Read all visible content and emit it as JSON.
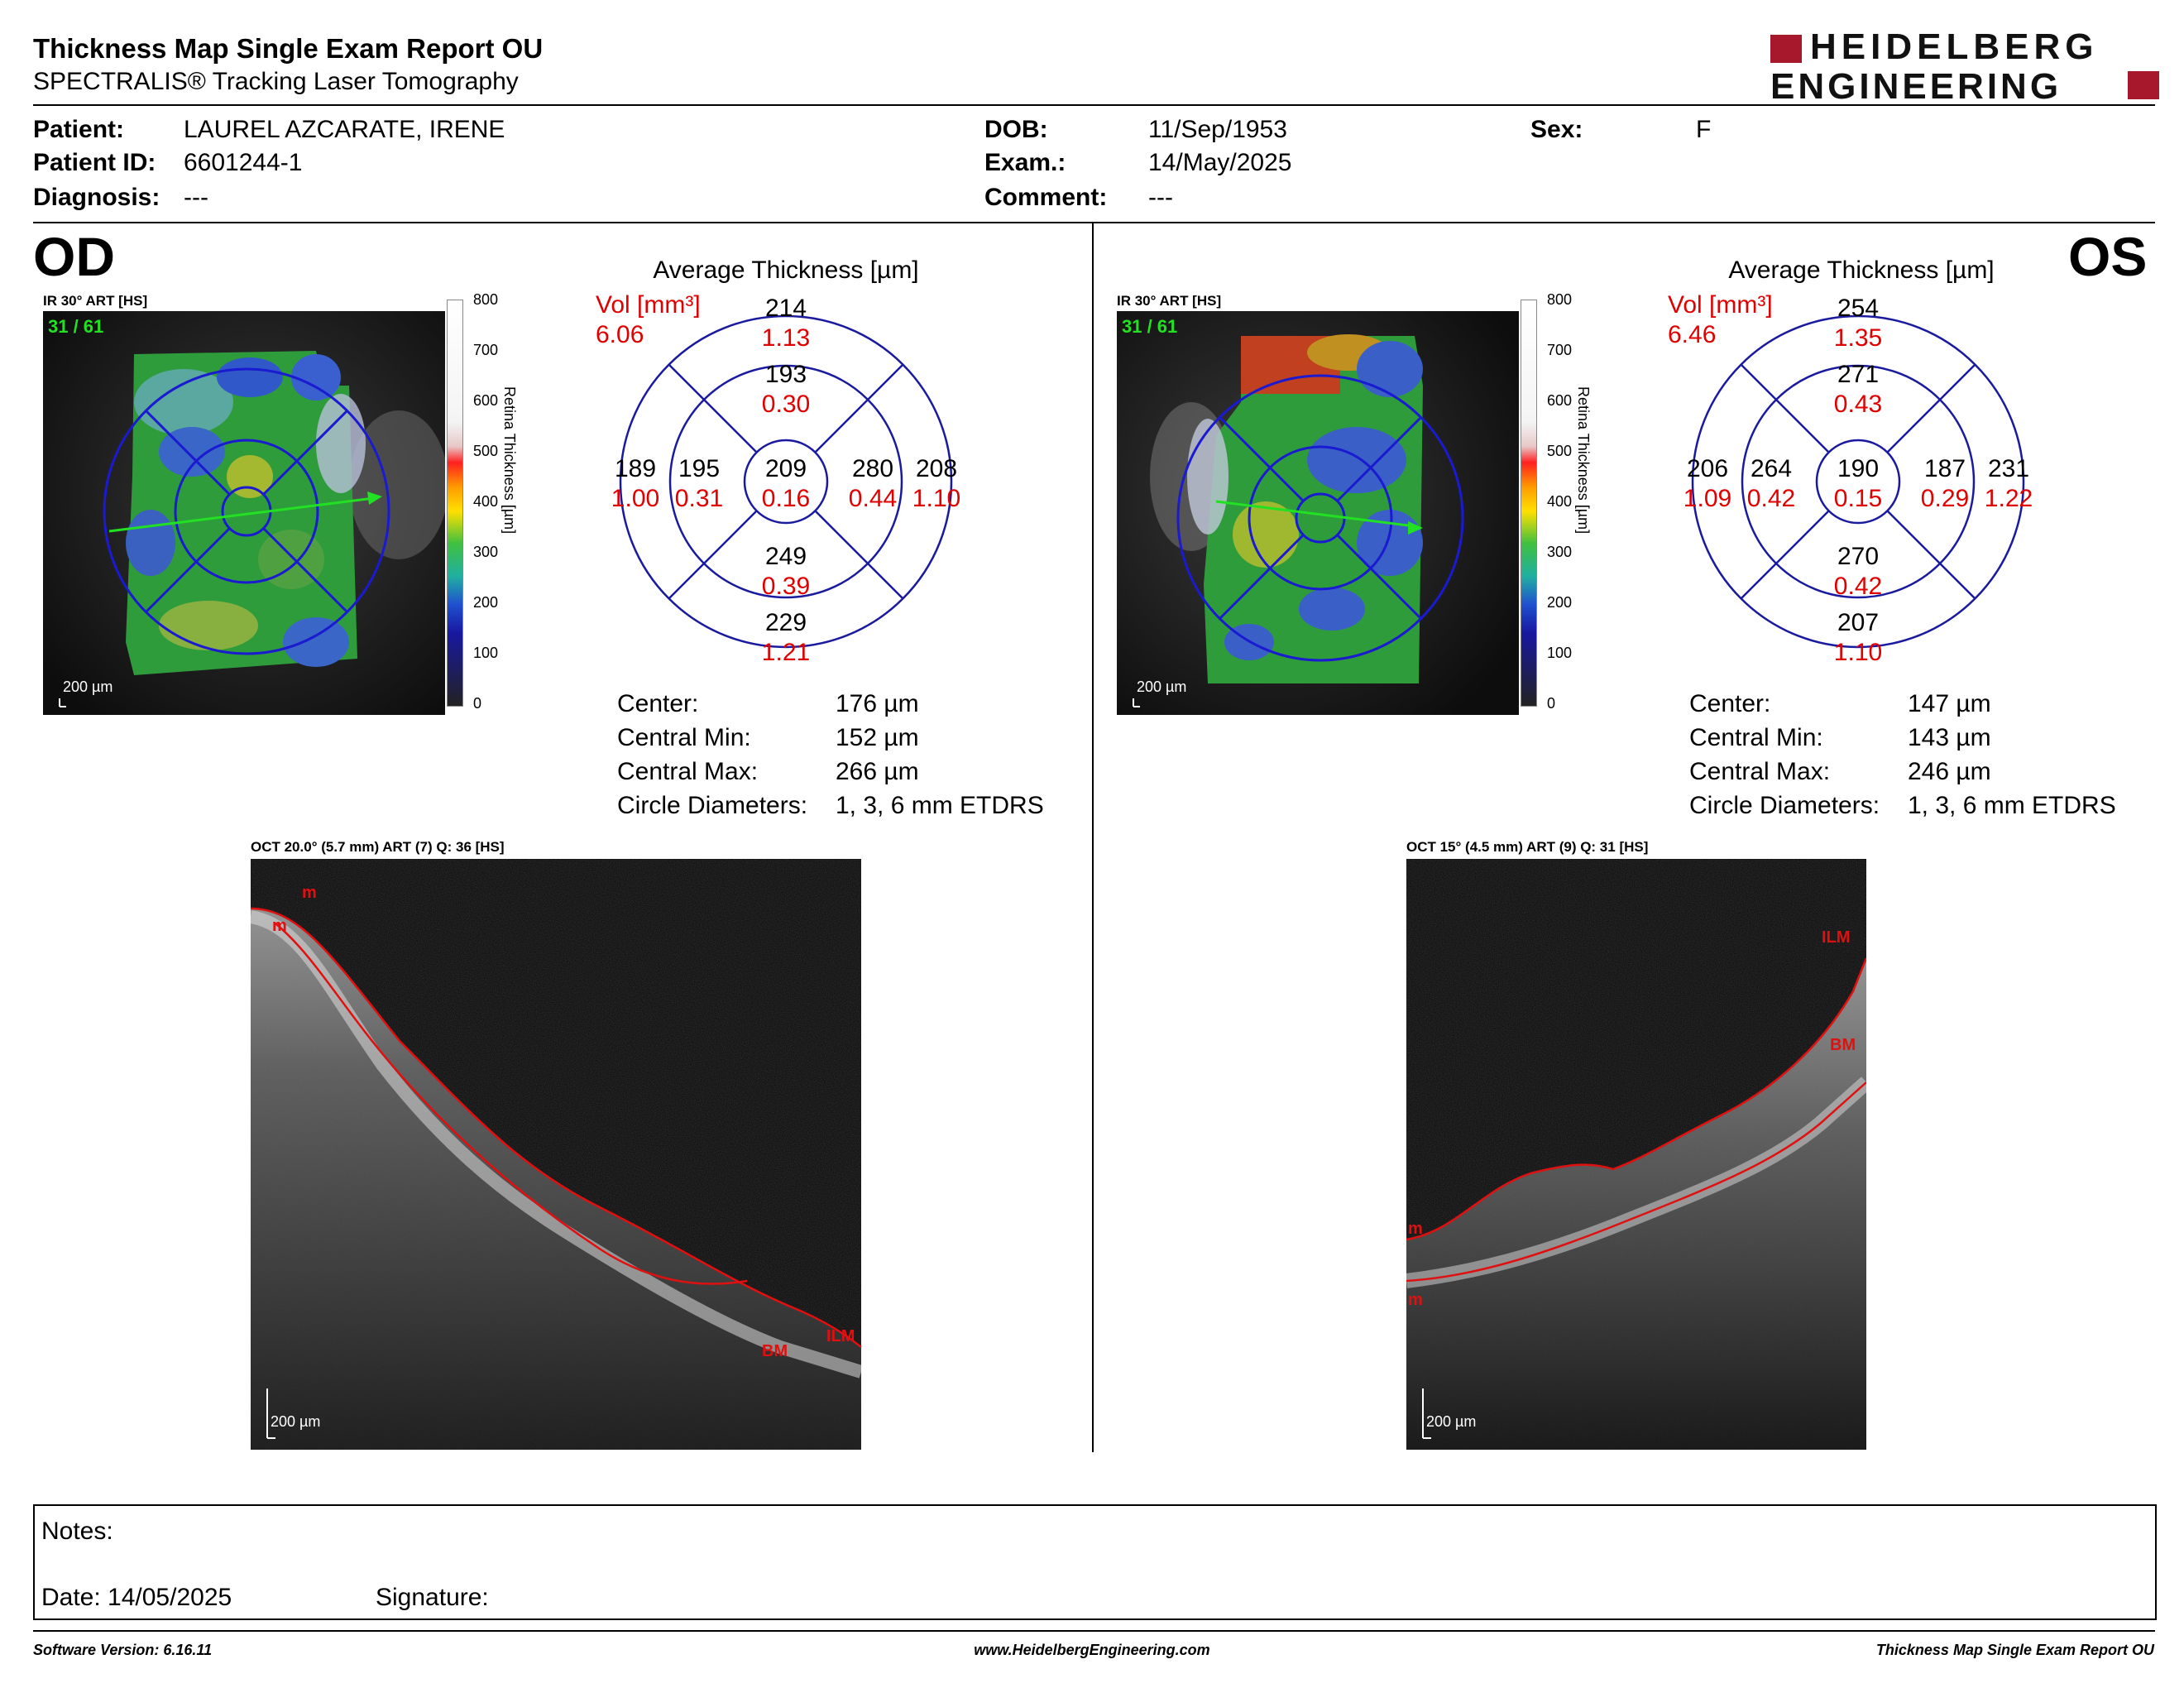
{
  "header": {
    "title": "Thickness Map Single Exam Report OU",
    "subtitle": "SPECTRALIS® Tracking Laser Tomography",
    "logo_line1": "HEIDELBERG",
    "logo_line2": "ENGINEERING"
  },
  "patient": {
    "patient_label": "Patient:",
    "patient_value": "LAUREL AZCARATE, IRENE",
    "id_label": "Patient ID:",
    "id_value": "6601244-1",
    "diagnosis_label": "Diagnosis:",
    "diagnosis_value": "---",
    "dob_label": "DOB:",
    "dob_value": "11/Sep/1953",
    "exam_label": "Exam.:",
    "exam_value": "14/May/2025",
    "comment_label": "Comment:",
    "comment_value": "---",
    "sex_label": "Sex:",
    "sex_value": "F"
  },
  "colorbar": {
    "ticks": [
      "800",
      "700",
      "600",
      "500",
      "400",
      "300",
      "200",
      "100",
      "0"
    ],
    "axis_label": "Retina Thickness [µm]"
  },
  "od": {
    "eye": "OD",
    "ir_label": "IR 30° ART [HS]",
    "ir_counter": "31 / 61",
    "ir_scale": "200 µm",
    "avg_title": "Average Thickness [µm]",
    "vol_label": "Vol [mm³]",
    "vol_total": "6.06",
    "grid": {
      "center": {
        "t": "209",
        "v": "0.16"
      },
      "inner_sup": {
        "t": "193",
        "v": "0.30"
      },
      "inner_inf": {
        "t": "249",
        "v": "0.39"
      },
      "inner_left": {
        "t": "195",
        "v": "0.31"
      },
      "inner_right": {
        "t": "280",
        "v": "0.44"
      },
      "outer_sup": {
        "t": "214",
        "v": "1.13"
      },
      "outer_inf": {
        "t": "229",
        "v": "1.21"
      },
      "outer_left": {
        "t": "189",
        "v": "1.00"
      },
      "outer_right": {
        "t": "208",
        "v": "1.10"
      }
    },
    "stats": [
      {
        "k": "Center:",
        "v": "176 µm"
      },
      {
        "k": "Central Min:",
        "v": "152 µm"
      },
      {
        "k": "Central Max:",
        "v": "266 µm"
      },
      {
        "k": "Circle Diameters:",
        "v": "1, 3, 6 mm ETDRS"
      }
    ],
    "oct_label": "OCT 20.0° (5.7 mm) ART (7) Q: 36 [HS]",
    "oct_scale": "200 µm",
    "seg_labels": {
      "top1": "m",
      "top2": "m",
      "ilm": "ILM",
      "bm": "BM"
    }
  },
  "os": {
    "eye": "OS",
    "ir_label": "IR 30° ART [HS]",
    "ir_counter": "31 / 61",
    "ir_scale": "200 µm",
    "avg_title": "Average Thickness [µm]",
    "vol_label": "Vol [mm³]",
    "vol_total": "6.46",
    "grid": {
      "center": {
        "t": "190",
        "v": "0.15"
      },
      "inner_sup": {
        "t": "271",
        "v": "0.43"
      },
      "inner_inf": {
        "t": "270",
        "v": "0.42"
      },
      "inner_left": {
        "t": "264",
        "v": "0.42"
      },
      "inner_right": {
        "t": "187",
        "v": "0.29"
      },
      "outer_sup": {
        "t": "254",
        "v": "1.35"
      },
      "outer_inf": {
        "t": "207",
        "v": "1.10"
      },
      "outer_left": {
        "t": "206",
        "v": "1.09"
      },
      "outer_right": {
        "t": "231",
        "v": "1.22"
      }
    },
    "stats": [
      {
        "k": "Center:",
        "v": "147 µm"
      },
      {
        "k": "Central Min:",
        "v": "143 µm"
      },
      {
        "k": "Central Max:",
        "v": "246 µm"
      },
      {
        "k": "Circle Diameters:",
        "v": "1, 3, 6 mm ETDRS"
      }
    ],
    "oct_label": "OCT 15° (4.5 mm) ART (9) Q: 31 [HS]",
    "oct_scale": "200 µm",
    "seg_labels": {
      "ilm": "ILM",
      "bm": "BM",
      "m1": "m",
      "m2": "m"
    }
  },
  "notes": {
    "notes_label": "Notes:",
    "date_label": "Date: 14/05/2025",
    "signature_label": "Signature:"
  },
  "footer": {
    "software": "Software Version: 6.16.11",
    "website": "www.HeidelbergEngineering.com",
    "report": "Thickness Map Single Exam Report OU"
  },
  "colors": {
    "accent_red": "#e00000",
    "grid_blue": "#1a1aa0",
    "logo_red": "#a8182c"
  }
}
